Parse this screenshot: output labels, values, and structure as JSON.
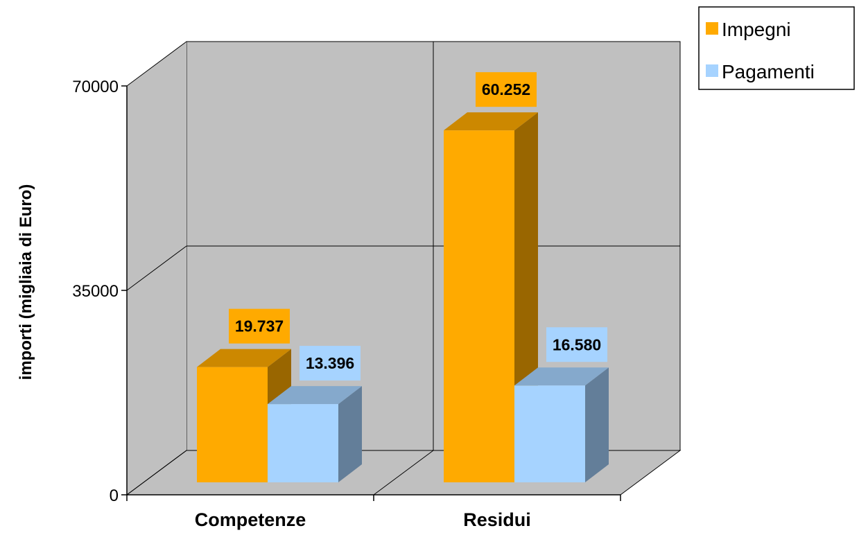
{
  "chart_data": {
    "type": "bar",
    "categories": [
      "Competenze",
      "Residui"
    ],
    "series": [
      {
        "name": "Impegni",
        "values": [
          19737,
          60252
        ],
        "labels": [
          "19.737",
          "60.252"
        ],
        "color": "#FFAA00"
      },
      {
        "name": "Pagamenti",
        "values": [
          13396,
          16580
        ],
        "labels": [
          "13.396",
          "16.580"
        ],
        "color": "#A6D3FF"
      }
    ],
    "ylabel": "importi (migliaia di Euro)",
    "xlabel": "",
    "ylim": [
      0,
      70000
    ],
    "yticks": [
      "0",
      "35000",
      "70000"
    ],
    "legend": "top-right",
    "grid": true,
    "style": "3d-clustered-column",
    "wall_color": "#C0C0C0"
  }
}
